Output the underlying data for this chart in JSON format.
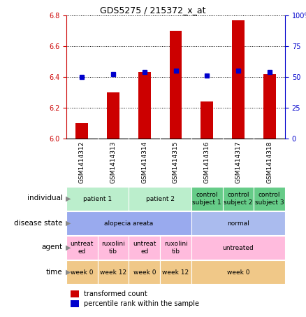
{
  "title": "GDS5275 / 215372_x_at",
  "samples": [
    "GSM1414312",
    "GSM1414313",
    "GSM1414314",
    "GSM1414315",
    "GSM1414316",
    "GSM1414317",
    "GSM1414318"
  ],
  "transformed_counts": [
    6.1,
    6.3,
    6.43,
    6.7,
    6.24,
    6.77,
    6.42
  ],
  "percentile_ranks": [
    50,
    52,
    54,
    55,
    51,
    55,
    54
  ],
  "ylim_left": [
    6.0,
    6.8
  ],
  "ylim_right": [
    0,
    100
  ],
  "yticks_left": [
    6.0,
    6.2,
    6.4,
    6.6,
    6.8
  ],
  "yticks_right": [
    0,
    25,
    50,
    75,
    100
  ],
  "bar_color": "#cc0000",
  "dot_color": "#0000cc",
  "bar_width": 0.4,
  "annotations": {
    "individual": {
      "label": "individual",
      "groups": [
        {
          "span": [
            0,
            1
          ],
          "text": "patient 1",
          "color": "#bbeecc"
        },
        {
          "span": [
            2,
            3
          ],
          "text": "patient 2",
          "color": "#bbeecc"
        },
        {
          "span": [
            4,
            4
          ],
          "text": "control\nsubject 1",
          "color": "#66cc88"
        },
        {
          "span": [
            5,
            5
          ],
          "text": "control\nsubject 2",
          "color": "#66cc88"
        },
        {
          "span": [
            6,
            6
          ],
          "text": "control\nsubject 3",
          "color": "#66cc88"
        }
      ]
    },
    "disease_state": {
      "label": "disease state",
      "groups": [
        {
          "span": [
            0,
            3
          ],
          "text": "alopecia areata",
          "color": "#99aaee"
        },
        {
          "span": [
            4,
            6
          ],
          "text": "normal",
          "color": "#aabbee"
        }
      ]
    },
    "agent": {
      "label": "agent",
      "groups": [
        {
          "span": [
            0,
            0
          ],
          "text": "untreat\ned",
          "color": "#ffbbdd"
        },
        {
          "span": [
            1,
            1
          ],
          "text": "ruxolini\ntib",
          "color": "#ffbbdd"
        },
        {
          "span": [
            2,
            2
          ],
          "text": "untreat\ned",
          "color": "#ffbbdd"
        },
        {
          "span": [
            3,
            3
          ],
          "text": "ruxolini\ntib",
          "color": "#ffbbdd"
        },
        {
          "span": [
            4,
            6
          ],
          "text": "untreated",
          "color": "#ffbbdd"
        }
      ]
    },
    "time": {
      "label": "time",
      "groups": [
        {
          "span": [
            0,
            0
          ],
          "text": "week 0",
          "color": "#f0c888"
        },
        {
          "span": [
            1,
            1
          ],
          "text": "week 12",
          "color": "#f0c888"
        },
        {
          "span": [
            2,
            2
          ],
          "text": "week 0",
          "color": "#f0c888"
        },
        {
          "span": [
            3,
            3
          ],
          "text": "week 12",
          "color": "#f0c888"
        },
        {
          "span": [
            4,
            6
          ],
          "text": "week 0",
          "color": "#f0c888"
        }
      ]
    }
  },
  "legend": [
    {
      "color": "#cc0000",
      "label": "transformed count"
    },
    {
      "color": "#0000cc",
      "label": "percentile rank within the sample"
    }
  ],
  "axis_color_left": "#cc0000",
  "axis_color_right": "#0000cc",
  "sample_bg": "#cccccc",
  "fig_width": 4.38,
  "fig_height": 4.53
}
